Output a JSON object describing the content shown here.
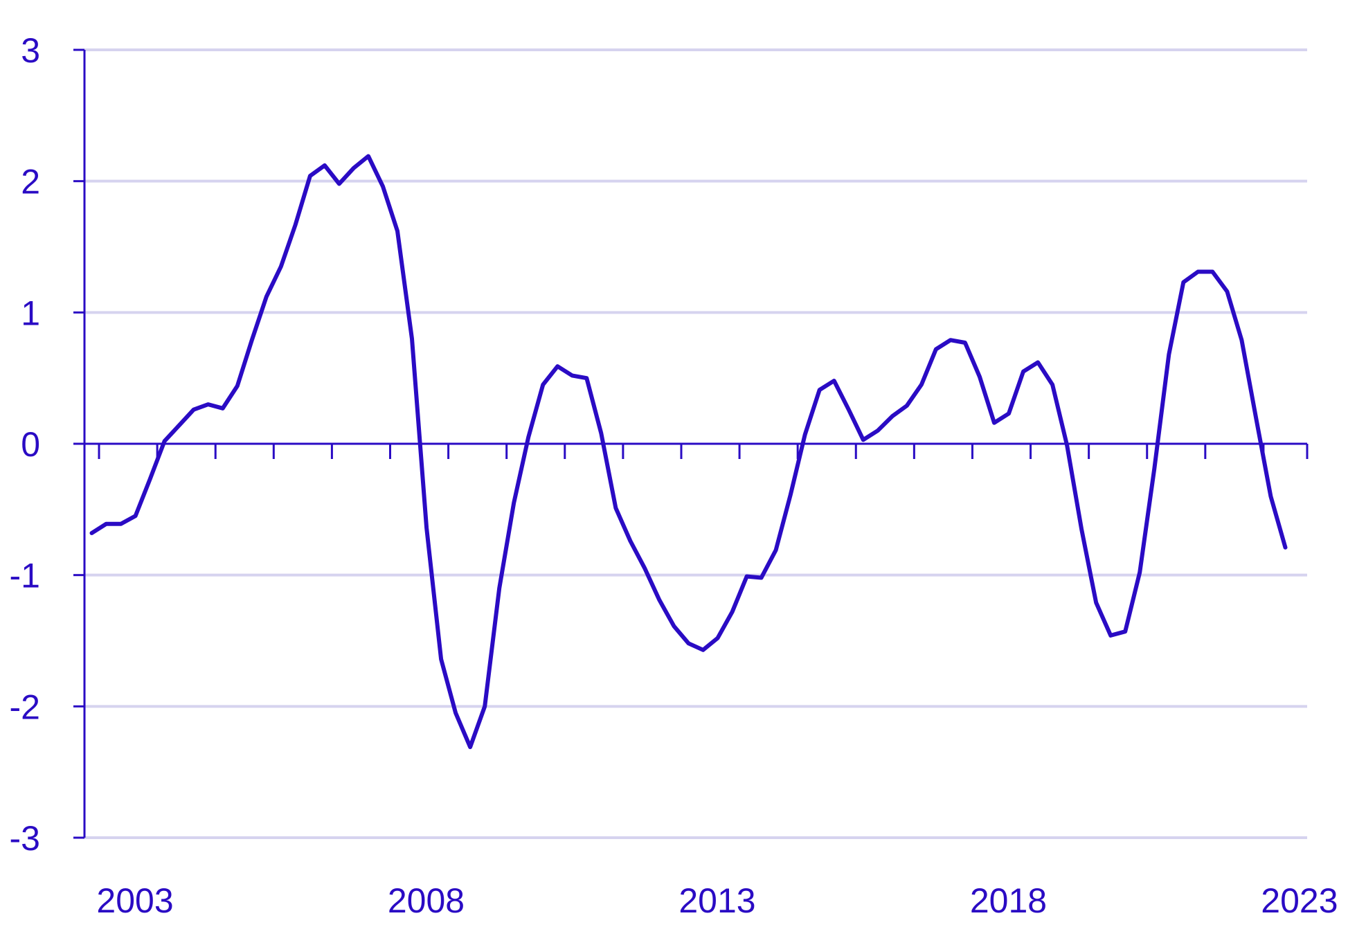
{
  "chart_data": {
    "type": "line",
    "title": "",
    "xlabel": "",
    "ylabel": "",
    "xlim": [
      2002.75,
      2023.75
    ],
    "ylim": [
      -3,
      3
    ],
    "yticks": [
      3,
      2,
      1,
      0,
      -1,
      -2,
      -3
    ],
    "ytick_labels": [
      "3",
      "2",
      "1",
      "0",
      "-1",
      "-2",
      "-3"
    ],
    "xticks": [
      2003,
      2008,
      2013,
      2018,
      2023
    ],
    "xtick_labels": [
      "2003",
      "2008",
      "2013",
      "2018",
      "2023"
    ],
    "minor_xticks": [
      2003,
      2004,
      2005,
      2006,
      2007,
      2008,
      2009,
      2010,
      2011,
      2012,
      2013,
      2014,
      2015,
      2016,
      2017,
      2018,
      2019,
      2020,
      2021,
      2022,
      2023
    ],
    "grid": true,
    "legend": "none",
    "colors": {
      "line": "#2a0bc4",
      "grid": "#d6d3ef",
      "axis": "#2a0bc4",
      "text": "#2a0bc4"
    },
    "series": [
      {
        "x": [
          2002.875,
          2003.125,
          2003.375,
          2003.625,
          2003.875,
          2004.125,
          2004.375,
          2004.625,
          2004.875,
          2005.125,
          2005.375,
          2005.625,
          2005.875,
          2006.125,
          2006.375,
          2006.625,
          2006.875,
          2007.125,
          2007.375,
          2007.625,
          2007.875,
          2008.125,
          2008.375,
          2008.625,
          2008.875,
          2009.125,
          2009.375,
          2009.625,
          2009.875,
          2010.125,
          2010.375,
          2010.625,
          2010.875,
          2011.125,
          2011.375,
          2011.625,
          2011.875,
          2012.125,
          2012.375,
          2012.625,
          2012.875,
          2013.125,
          2013.375,
          2013.625,
          2013.875,
          2014.125,
          2014.375,
          2014.625,
          2014.875,
          2015.125,
          2015.375,
          2015.625,
          2015.875,
          2016.125,
          2016.375,
          2016.625,
          2016.875,
          2017.125,
          2017.375,
          2017.625,
          2017.875,
          2018.125,
          2018.375,
          2018.625,
          2018.875,
          2019.125,
          2019.375,
          2019.625,
          2019.875,
          2020.125,
          2020.375,
          2020.625,
          2020.875,
          2021.125,
          2021.375,
          2021.625,
          2021.875,
          2022.125,
          2022.375,
          2022.625,
          2022.875,
          2023.125,
          2023.375
        ],
        "values": [
          -0.68,
          -0.61,
          -0.61,
          -0.55,
          -0.27,
          0.02,
          0.14,
          0.26,
          0.3,
          0.27,
          0.44,
          0.79,
          1.12,
          1.35,
          1.67,
          2.04,
          2.12,
          1.98,
          2.1,
          2.19,
          1.96,
          1.62,
          0.8,
          -0.64,
          -1.64,
          -2.05,
          -2.31,
          -2.0,
          -1.1,
          -0.45,
          0.05,
          0.45,
          0.59,
          0.52,
          0.5,
          0.08,
          -0.49,
          -0.74,
          -0.95,
          -1.19,
          -1.39,
          -1.52,
          -1.57,
          -1.48,
          -1.28,
          -1.01,
          -1.02,
          -0.81,
          -0.39,
          0.07,
          0.41,
          0.48,
          0.26,
          0.03,
          0.1,
          0.21,
          0.29,
          0.45,
          0.72,
          0.79,
          0.77,
          0.51,
          0.16,
          0.23,
          0.55,
          0.62,
          0.45,
          -0.01,
          -0.65,
          -1.21,
          -1.46,
          -1.43,
          -0.98,
          -0.19,
          0.68,
          1.23,
          1.31,
          1.31,
          1.16,
          0.79,
          0.19,
          -0.4,
          -0.79
        ]
      }
    ]
  }
}
